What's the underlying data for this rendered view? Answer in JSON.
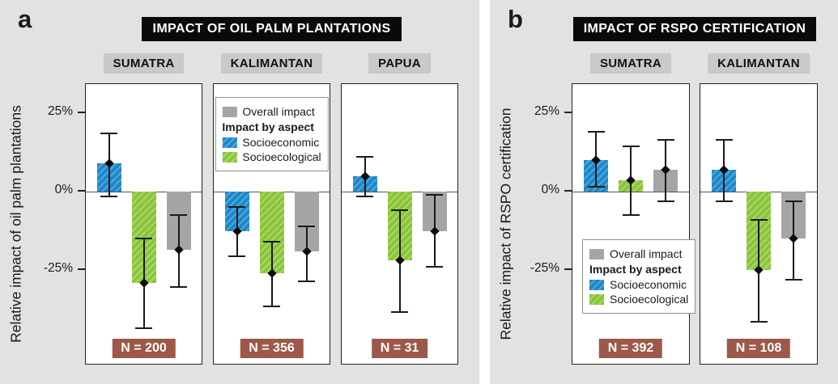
{
  "figure": {
    "page_background": "#ffffff",
    "panel_background": "#e2e2e0"
  },
  "colors": {
    "socioeconomic": "#1e87c8",
    "socioeconomic_hatch": "#55abdf",
    "socioecological": "#8ac43c",
    "socioecological_hatch": "#acd96a",
    "overall": "#a5a5a3",
    "banner_bg": "#0a0a0a",
    "banner_text": "#ffffff",
    "region_header_bg": "#c9c9c7",
    "n_badge_bg": "#9c594a",
    "n_badge_text": "#ffffff",
    "error_and_marker": "#1a1a1a"
  },
  "legend": {
    "overall_label": "Overall impact",
    "aspect_header": "Impact by aspect",
    "socioeconomic_label": "Socioeconomic",
    "socioecological_label": "Socioecological"
  },
  "chart_data": [
    {
      "type": "bar",
      "panel_label": "a",
      "title": "IMPACT OF OIL PALM PLANTATIONS",
      "ylabel": "Relative impact of oil palm plantations",
      "unit": "%",
      "ytick_labels": [
        "25%",
        "0%",
        "-25%"
      ],
      "ytick_values": [
        25,
        0,
        -25
      ],
      "ylim": [
        -55,
        34
      ],
      "grid": false,
      "series_names": [
        "Socioeconomic",
        "Socioecological",
        "Overall impact"
      ],
      "legend_placement": {
        "region_index": 1,
        "position": "top"
      },
      "regions": [
        {
          "name": "SUMATRA",
          "n": 200,
          "n_label": "N = 200",
          "bars": [
            {
              "series": "Socioeconomic",
              "color_key": "socioeconomic",
              "value": 9,
              "ci_low": -1.5,
              "ci_high": 18.5
            },
            {
              "series": "Socioecological",
              "color_key": "socioecological",
              "value": -29,
              "ci_low": -43.5,
              "ci_high": -15
            },
            {
              "series": "Overall impact",
              "color_key": "overall",
              "value": -18.5,
              "ci_low": -30.5,
              "ci_high": -7.5
            }
          ]
        },
        {
          "name": "KALIMANTAN",
          "n": 356,
          "n_label": "N = 356",
          "bars": [
            {
              "series": "Socioeconomic",
              "color_key": "socioeconomic",
              "value": -12.5,
              "ci_low": -20.5,
              "ci_high": -5
            },
            {
              "series": "Socioecological",
              "color_key": "socioecological",
              "value": -26,
              "ci_low": -36.5,
              "ci_high": -16
            },
            {
              "series": "Overall impact",
              "color_key": "overall",
              "value": -19,
              "ci_low": -28.5,
              "ci_high": -11
            }
          ]
        },
        {
          "name": "PAPUA",
          "n": 31,
          "n_label": "N = 31",
          "bars": [
            {
              "series": "Socioeconomic",
              "color_key": "socioeconomic",
              "value": 5,
              "ci_low": -1.5,
              "ci_high": 11
            },
            {
              "series": "Socioecological",
              "color_key": "socioecological",
              "value": -22,
              "ci_low": -38.5,
              "ci_high": -6
            },
            {
              "series": "Overall impact",
              "color_key": "overall",
              "value": -12.5,
              "ci_low": -24,
              "ci_high": -1
            }
          ]
        }
      ]
    },
    {
      "type": "bar",
      "panel_label": "b",
      "title": "IMPACT OF RSPO CERTIFICATION",
      "ylabel": "Relative impact of RSPO certification",
      "unit": "%",
      "ytick_labels": [
        "25%",
        "0%",
        "-25%"
      ],
      "ytick_values": [
        25,
        0,
        -25
      ],
      "ylim": [
        -55,
        34
      ],
      "grid": false,
      "series_names": [
        "Socioeconomic",
        "Socioecological",
        "Overall impact"
      ],
      "legend_placement": {
        "region_index": 0,
        "position": "bottom"
      },
      "regions": [
        {
          "name": "SUMATRA",
          "n": 392,
          "n_label": "N = 392",
          "bars": [
            {
              "series": "Socioeconomic",
              "color_key": "socioeconomic",
              "value": 10,
              "ci_low": 1.5,
              "ci_high": 19
            },
            {
              "series": "Socioecological",
              "color_key": "socioecological",
              "value": 3.5,
              "ci_low": -7.5,
              "ci_high": 14.5
            },
            {
              "series": "Overall impact",
              "color_key": "overall",
              "value": 7,
              "ci_low": -3,
              "ci_high": 16.5
            }
          ]
        },
        {
          "name": "KALIMANTAN",
          "n": 108,
          "n_label": "N = 108",
          "bars": [
            {
              "series": "Socioeconomic",
              "color_key": "socioeconomic",
              "value": 7,
              "ci_low": -3,
              "ci_high": 16.5
            },
            {
              "series": "Socioecological",
              "color_key": "socioecological",
              "value": -25,
              "ci_low": -41.5,
              "ci_high": -9
            },
            {
              "series": "Overall impact",
              "color_key": "overall",
              "value": -15,
              "ci_low": -28,
              "ci_high": -3
            }
          ]
        }
      ]
    }
  ]
}
